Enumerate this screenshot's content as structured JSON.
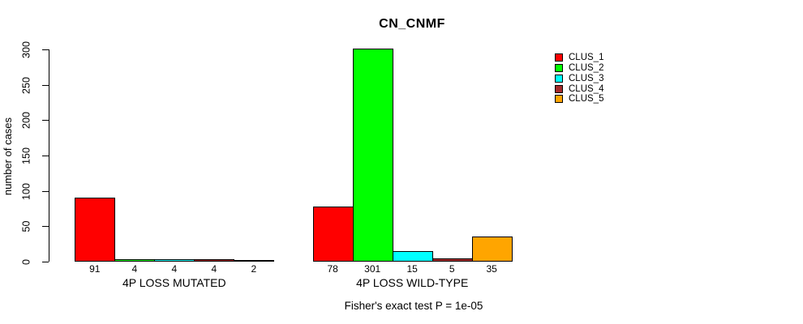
{
  "chart_data": {
    "type": "bar",
    "title": "CN_CNMF",
    "ylabel": "number of cases",
    "ylim": [
      0,
      300
    ],
    "yticks": [
      0,
      50,
      100,
      150,
      200,
      250,
      300
    ],
    "grid": false,
    "legend_position": "right",
    "series": [
      {
        "name": "CLUS_1",
        "color": "#FF0000"
      },
      {
        "name": "CLUS_2",
        "color": "#00FF00"
      },
      {
        "name": "CLUS_3",
        "color": "#00FFFF"
      },
      {
        "name": "CLUS_4",
        "color": "#A52A2A"
      },
      {
        "name": "CLUS_5",
        "color": "#FFA500"
      }
    ],
    "groups": [
      {
        "label": "4P LOSS MUTATED",
        "values": [
          91,
          4,
          4,
          4,
          2
        ]
      },
      {
        "label": "4P LOSS WILD-TYPE",
        "values": [
          78,
          301,
          15,
          5,
          35
        ]
      }
    ],
    "footer": "Fisher's exact test P = 1e-05"
  }
}
